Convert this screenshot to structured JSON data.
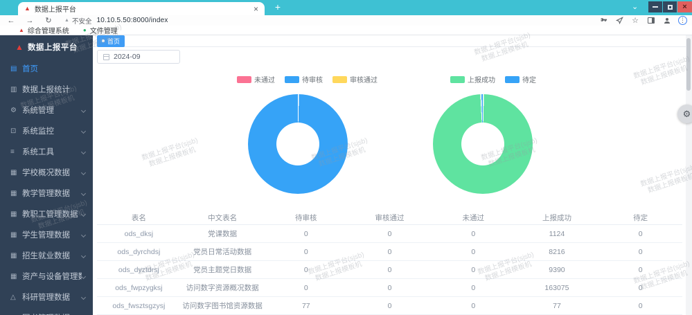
{
  "browser": {
    "tab_title": "数据上报平台",
    "new_tab_label": "+",
    "url": "10.10.5.50:8000/index",
    "security_label": "不安全",
    "bookmarks": [
      {
        "label": "综合管理系统",
        "icon": "triangle-logo-icon",
        "icon_glyph": "▲",
        "icon_color": "#d93a35"
      },
      {
        "label": "文件管理",
        "icon": "globe-icon",
        "icon_glyph": "●",
        "icon_color": "#2ab26b"
      }
    ]
  },
  "app": {
    "logo_title": "数据上报平台",
    "sidebar": {
      "items": [
        {
          "label": "首页",
          "icon": "home-icon",
          "glyph": "▤",
          "active": true,
          "has_children": false
        },
        {
          "label": "数据上报统计",
          "icon": "stats-icon",
          "glyph": "▥",
          "active": false,
          "has_children": false
        },
        {
          "label": "系统管理",
          "icon": "gear-icon",
          "glyph": "⚙",
          "active": false,
          "has_children": true
        },
        {
          "label": "系统监控",
          "icon": "monitor-icon",
          "glyph": "⊡",
          "active": false,
          "has_children": true
        },
        {
          "label": "系统工具",
          "icon": "tools-icon",
          "glyph": "≡",
          "active": false,
          "has_children": true
        },
        {
          "label": "学校概况数据",
          "icon": "table-icon",
          "glyph": "▦",
          "active": false,
          "has_children": true
        },
        {
          "label": "教学管理数据",
          "icon": "table-icon",
          "glyph": "▦",
          "active": false,
          "has_children": true
        },
        {
          "label": "教职工管理数据",
          "icon": "table-icon",
          "glyph": "▦",
          "active": false,
          "has_children": true
        },
        {
          "label": "学生管理数据",
          "icon": "table-icon",
          "glyph": "▦",
          "active": false,
          "has_children": true
        },
        {
          "label": "招生就业数据",
          "icon": "table-icon",
          "glyph": "▦",
          "active": false,
          "has_children": true
        },
        {
          "label": "资产与设备管理数据",
          "icon": "table-icon",
          "glyph": "▦",
          "active": false,
          "has_children": true
        },
        {
          "label": "科研管理数据",
          "icon": "flask-icon",
          "glyph": "△",
          "active": false,
          "has_children": true
        },
        {
          "label": "图书管理数据",
          "icon": "table-icon",
          "glyph": "▦",
          "active": false,
          "has_children": true
        }
      ]
    },
    "tagsbar": {
      "active_tag": "首页"
    },
    "filters": {
      "month_value": "2024-09"
    },
    "table": {
      "headers": [
        "表名",
        "中文表名",
        "待审核",
        "审核通过",
        "未通过",
        "上报成功",
        "待定"
      ],
      "rows": [
        [
          "ods_dksj",
          "党课数据",
          "0",
          "0",
          "0",
          "1124",
          "0"
        ],
        [
          "ods_dyrchdsj",
          "党员日常活动数据",
          "0",
          "0",
          "0",
          "8216",
          "0"
        ],
        [
          "ods_dyztdrsj",
          "党员主题党日数据",
          "0",
          "0",
          "0",
          "9390",
          "0"
        ],
        [
          "ods_fwpzygksj",
          "访问数字资源概况数据",
          "0",
          "0",
          "0",
          "163075",
          "0"
        ],
        [
          "ods_fwsztsgzysj",
          "访问数字图书馆资源数据",
          "77",
          "0",
          "0",
          "77",
          "0"
        ]
      ]
    }
  },
  "chart_data": [
    {
      "type": "pie",
      "shape": "donut",
      "legend_position": "top",
      "values_are_percent": true,
      "series": [
        {
          "name": "未通过",
          "value": 0,
          "color": "#fb7293"
        },
        {
          "name": "待审核",
          "value": 100,
          "color": "#36a3f7"
        },
        {
          "name": "审核通过",
          "value": 0,
          "color": "#ffd85c"
        }
      ]
    },
    {
      "type": "pie",
      "shape": "donut",
      "legend_position": "top",
      "values_are_percent": true,
      "series": [
        {
          "name": "上报成功",
          "value": 99.2,
          "color": "#5fe3a0"
        },
        {
          "name": "待定",
          "value": 0.8,
          "color": "#36a3f7"
        }
      ]
    }
  ],
  "watermark": {
    "line1": "数据上报平台(sjsb)",
    "line2": "数据上报模板机"
  },
  "colors": {
    "titlebar": "#3ec1d3",
    "sidebar_bg": "#304156",
    "accent_blue": "#3f9cf5",
    "close_button": "#e0605e",
    "pie_blue": "#36a3f7",
    "pie_green": "#5fe3a0",
    "pie_pink": "#fb7293",
    "pie_yellow": "#ffd85c"
  }
}
